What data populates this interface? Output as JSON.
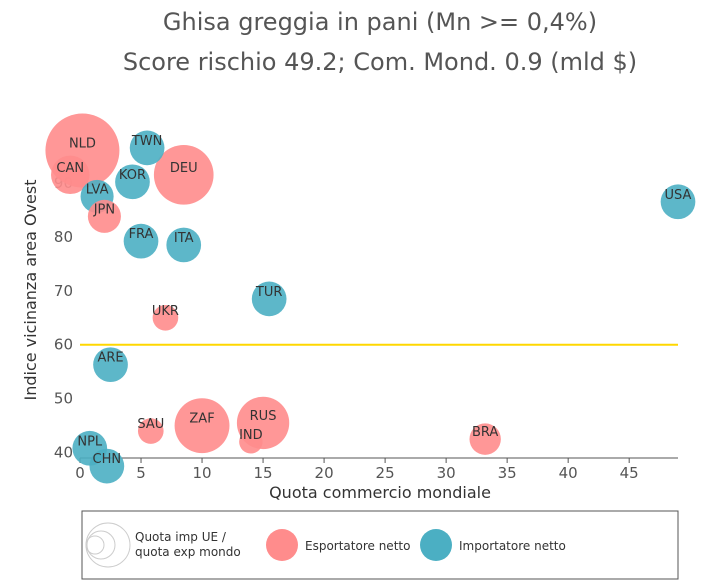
{
  "chart_data": {
    "type": "scatter",
    "title": "Ghisa greggia in pani (Mn >= 0,4%)",
    "subtitle": "Score rischio 49.2; Com. Mond. 0.9 (mld $)",
    "xlabel": "Quota commercio mondiale",
    "ylabel": "Indice vicinanza area Ovest",
    "xlim": [
      0,
      49
    ],
    "ylim": [
      39,
      105
    ],
    "x_ticks": [
      0,
      5,
      10,
      15,
      20,
      25,
      30,
      35,
      40,
      45
    ],
    "y_ticks": [
      40,
      50,
      60,
      70,
      80,
      90
    ],
    "reference_line": {
      "y": 60,
      "color": "#FFD700"
    },
    "colors": {
      "esportatore": "#FF8C8C",
      "importatore": "#4BAFC3"
    },
    "legend": {
      "size_label_line1": "Quota imp UE /",
      "size_label_line2": "quota exp mondo",
      "esportatore": "Esportatore netto",
      "importatore": "Importatore netto"
    },
    "points": [
      {
        "label": "NLD",
        "x": 0.2,
        "y": 96.0,
        "size": 1.0,
        "type": "esportatore"
      },
      {
        "label": "TWN",
        "x": 5.5,
        "y": 96.5,
        "size": 0.22,
        "type": "importatore"
      },
      {
        "label": "CAN",
        "x": -0.8,
        "y": 91.5,
        "size": 0.27,
        "type": "esportatore"
      },
      {
        "label": "DEU",
        "x": 8.5,
        "y": 91.5,
        "size": 0.65,
        "type": "esportatore"
      },
      {
        "label": "KOR",
        "x": 4.3,
        "y": 90.2,
        "size": 0.22,
        "type": "importatore"
      },
      {
        "label": "LVA",
        "x": 1.4,
        "y": 87.5,
        "size": 0.2,
        "type": "importatore"
      },
      {
        "label": "JPN",
        "x": 2.0,
        "y": 83.8,
        "size": 0.2,
        "type": "esportatore"
      },
      {
        "label": "USA",
        "x": 49.0,
        "y": 86.5,
        "size": 0.22,
        "type": "importatore"
      },
      {
        "label": "FRA",
        "x": 5.0,
        "y": 79.2,
        "size": 0.22,
        "type": "importatore"
      },
      {
        "label": "ITA",
        "x": 8.5,
        "y": 78.5,
        "size": 0.22,
        "type": "importatore"
      },
      {
        "label": "TUR",
        "x": 15.5,
        "y": 68.5,
        "size": 0.22,
        "type": "importatore"
      },
      {
        "label": "UKR",
        "x": 7.0,
        "y": 65.0,
        "size": 0.12,
        "type": "esportatore"
      },
      {
        "label": "ARE",
        "x": 2.5,
        "y": 56.3,
        "size": 0.22,
        "type": "importatore"
      },
      {
        "label": "ZAF",
        "x": 10.0,
        "y": 45.0,
        "size": 0.55,
        "type": "esportatore"
      },
      {
        "label": "RUS",
        "x": 15.0,
        "y": 45.5,
        "size": 0.5,
        "type": "esportatore"
      },
      {
        "label": "SAU",
        "x": 5.8,
        "y": 44.0,
        "size": 0.12,
        "type": "esportatore"
      },
      {
        "label": "IND",
        "x": 14.0,
        "y": 42.0,
        "size": 0.1,
        "type": "esportatore"
      },
      {
        "label": "BRA",
        "x": 33.2,
        "y": 42.5,
        "size": 0.18,
        "type": "esportatore"
      },
      {
        "label": "NPL",
        "x": 0.8,
        "y": 40.8,
        "size": 0.22,
        "type": "importatore"
      },
      {
        "label": "CHN",
        "x": 2.2,
        "y": 37.5,
        "size": 0.22,
        "type": "importatore"
      }
    ]
  }
}
